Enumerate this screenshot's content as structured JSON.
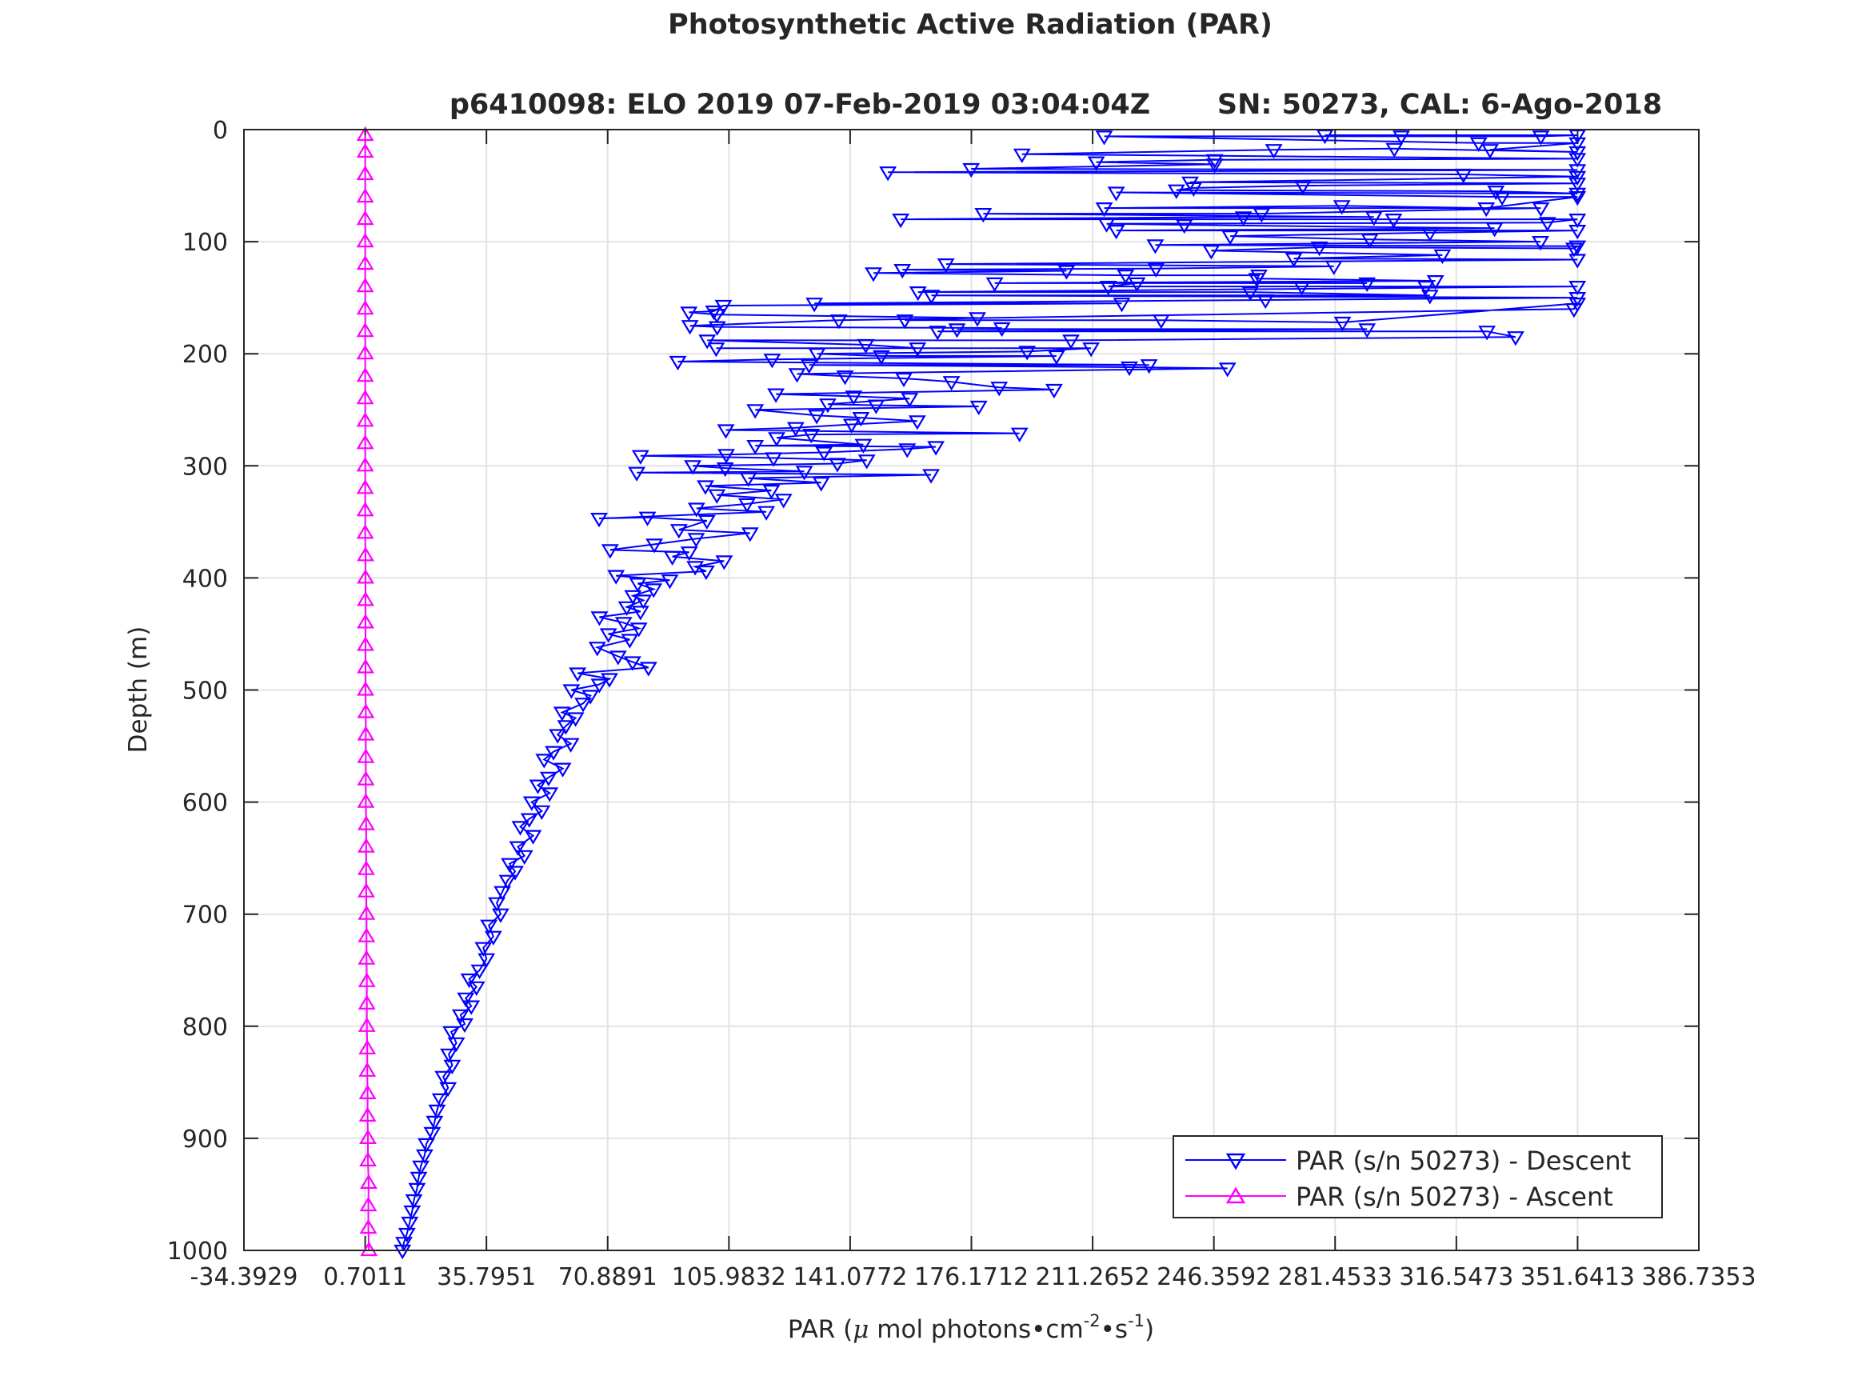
{
  "chart_data": {
    "type": "line",
    "title": "Photosynthetic Active Radiation (PAR)",
    "subtitle_left": "p6410098: ELO 2019 07-Feb-2019 03:04:04Z",
    "subtitle_right": "SN: 50273, CAL: 6-Ago-2018",
    "xlabel": {
      "prefix": "PAR (",
      "mu": "μ",
      "unit": " mol photons•cm",
      "exp1": "-2",
      "mid": "•s",
      "exp2": "-1",
      "suffix": ")"
    },
    "ylabel": "Depth (m)",
    "xlim": [
      -34.3929,
      386.7353
    ],
    "ylim": [
      0,
      1000
    ],
    "y_reversed": true,
    "grid": true,
    "x_ticks": [
      -34.3929,
      0.7011,
      35.7951,
      70.8891,
      105.9832,
      141.0772,
      176.1712,
      211.2652,
      246.3592,
      281.4533,
      316.5473,
      351.6413,
      386.7353
    ],
    "x_tick_labels": [
      "-34.3929",
      "0.7011",
      "35.7951",
      "70.8891",
      "105.9832",
      "141.0772",
      "176.1712",
      "211.2652",
      "246.3592",
      "281.4533",
      "316.5473",
      "351.6413",
      "386.7353"
    ],
    "y_ticks": [
      0,
      100,
      200,
      300,
      400,
      500,
      600,
      700,
      800,
      900,
      1000
    ],
    "y_tick_labels": [
      "0",
      "100",
      "200",
      "300",
      "400",
      "500",
      "600",
      "700",
      "800",
      "900",
      "1000"
    ],
    "legend_position": "bottom-right",
    "series": [
      {
        "name": "PAR (s/n 50273) - Descent",
        "color": "#0000ff",
        "marker": "triangle-down",
        "points": [
          [
            278.5,
            5
          ],
          [
            351.6,
            5
          ],
          [
            341,
            6
          ],
          [
            300.6,
            6
          ],
          [
            214.6,
            6
          ],
          [
            323,
            12
          ],
          [
            351.6,
            12
          ],
          [
            326.3,
            18
          ],
          [
            351.6,
            20
          ],
          [
            298.6,
            17
          ],
          [
            263.7,
            18
          ],
          [
            190.8,
            22
          ],
          [
            351.6,
            26
          ],
          [
            246.6,
            27
          ],
          [
            212.3,
            29
          ],
          [
            246.6,
            31
          ],
          [
            176.1,
            35
          ],
          [
            351.6,
            36
          ],
          [
            152,
            38
          ],
          [
            318.6,
            40
          ],
          [
            351.6,
            42
          ],
          [
            239.5,
            47
          ],
          [
            351.6,
            48
          ],
          [
            272.1,
            50
          ],
          [
            240.5,
            52
          ],
          [
            235.5,
            54
          ],
          [
            328,
            55
          ],
          [
            351.6,
            57
          ],
          [
            218.1,
            56
          ],
          [
            329.8,
            60
          ],
          [
            351.6,
            60
          ],
          [
            325.2,
            70
          ],
          [
            283.4,
            68
          ],
          [
            214.6,
            70
          ],
          [
            341,
            70
          ],
          [
            260.2,
            75
          ],
          [
            179.6,
            75
          ],
          [
            292.7,
            78
          ],
          [
            254.9,
            78
          ],
          [
            155.7,
            80
          ],
          [
            298.4,
            80
          ],
          [
            351.6,
            80
          ],
          [
            342.9,
            83
          ],
          [
            215.3,
            84
          ],
          [
            237.8,
            85
          ],
          [
            327.6,
            88
          ],
          [
            218.1,
            90
          ],
          [
            351.6,
            90
          ],
          [
            308.9,
            92
          ],
          [
            251.1,
            95
          ],
          [
            291.5,
            98
          ],
          [
            340.9,
            100
          ],
          [
            229.4,
            103
          ],
          [
            351.6,
            104
          ],
          [
            350.6,
            106
          ],
          [
            276.9,
            105
          ],
          [
            245.6,
            108
          ],
          [
            312.5,
            112
          ],
          [
            269.5,
            115
          ],
          [
            351.6,
            116
          ],
          [
            168.8,
            120
          ],
          [
            281.1,
            122
          ],
          [
            229.6,
            124
          ],
          [
            156.2,
            125
          ],
          [
            203.7,
            126
          ],
          [
            147.8,
            128
          ],
          [
            220.8,
            130
          ],
          [
            259.4,
            130
          ],
          [
            258.8,
            133
          ],
          [
            310.5,
            135
          ],
          [
            182.9,
            137
          ],
          [
            290.7,
            137
          ],
          [
            224.1,
            137
          ],
          [
            215.8,
            140
          ],
          [
            271.8,
            140
          ],
          [
            307.7,
            140
          ],
          [
            351.6,
            140
          ],
          [
            160.7,
            145
          ],
          [
            256.9,
            145
          ],
          [
            308.9,
            148
          ],
          [
            164.6,
            148
          ],
          [
            351.6,
            150
          ],
          [
            261.3,
            152
          ],
          [
            130.7,
            155
          ],
          [
            219.7,
            155
          ],
          [
            104.4,
            157
          ],
          [
            101.6,
            162
          ],
          [
            94.4,
            163
          ],
          [
            102.5,
            165
          ],
          [
            177.9,
            168
          ],
          [
            156.9,
            170
          ],
          [
            231.1,
            170
          ],
          [
            283.6,
            172
          ],
          [
            351.6,
            155
          ],
          [
            350.6,
            160
          ],
          [
            137.8,
            170
          ],
          [
            94.7,
            175
          ],
          [
            102.6,
            176
          ],
          [
            185,
            177
          ],
          [
            172,
            178
          ],
          [
            290.7,
            178
          ],
          [
            166.4,
            180
          ],
          [
            325.4,
            180
          ],
          [
            333.7,
            185
          ],
          [
            205,
            188
          ],
          [
            99.7,
            188
          ],
          [
            145.6,
            192
          ],
          [
            160.6,
            195
          ],
          [
            102.3,
            195
          ],
          [
            210.8,
            195
          ],
          [
            192.3,
            198
          ],
          [
            131.5,
            200
          ],
          [
            150.1,
            202
          ],
          [
            200.8,
            202
          ],
          [
            118.5,
            205
          ],
          [
            91.2,
            207
          ],
          [
            227.6,
            210
          ],
          [
            129.2,
            210
          ],
          [
            221.9,
            212
          ],
          [
            250.3,
            213
          ],
          [
            125.7,
            218
          ],
          [
            139.6,
            220
          ],
          [
            156.6,
            222
          ],
          [
            170.4,
            225
          ],
          [
            184.2,
            230
          ],
          [
            200.1,
            232
          ],
          [
            119.6,
            236
          ],
          [
            142.1,
            238
          ],
          [
            158.3,
            240
          ],
          [
            134.6,
            245
          ],
          [
            148.6,
            246
          ],
          [
            178.3,
            247
          ],
          [
            113.6,
            250
          ],
          [
            131.4,
            255
          ],
          [
            144.2,
            257
          ],
          [
            160.5,
            260
          ],
          [
            141.5,
            263
          ],
          [
            125.3,
            266
          ],
          [
            105.1,
            268
          ],
          [
            190.1,
            271
          ],
          [
            129.8,
            272
          ],
          [
            119.8,
            275
          ],
          [
            144.9,
            281
          ],
          [
            113.6,
            282
          ],
          [
            165.9,
            283
          ],
          [
            157.6,
            285
          ],
          [
            133.5,
            288
          ],
          [
            105.2,
            290
          ],
          [
            80.4,
            291
          ],
          [
            118.9,
            293
          ],
          [
            145.9,
            295
          ],
          [
            137.4,
            298
          ],
          [
            95.5,
            300
          ],
          [
            104.9,
            302
          ],
          [
            127.8,
            305
          ],
          [
            79.3,
            306
          ],
          [
            164.5,
            308
          ],
          [
            111.6,
            311
          ],
          [
            132.7,
            315
          ],
          [
            99.2,
            318
          ],
          [
            118.3,
            322
          ],
          [
            102.5,
            326
          ],
          [
            121.8,
            330
          ],
          [
            111.2,
            334
          ],
          [
            96.6,
            338
          ],
          [
            116.8,
            341
          ],
          [
            68.4,
            347
          ],
          [
            82.4,
            346
          ],
          [
            99.6,
            349
          ],
          [
            91.5,
            357
          ],
          [
            112.1,
            360
          ],
          [
            96.5,
            365
          ],
          [
            84.4,
            370
          ],
          [
            71.6,
            375
          ],
          [
            94.5,
            377
          ],
          [
            89.6,
            381
          ],
          [
            104.6,
            385
          ],
          [
            96.2,
            390
          ],
          [
            99.4,
            394
          ],
          [
            73.3,
            398
          ],
          [
            88.9,
            402
          ],
          [
            79.6,
            405
          ],
          [
            84.2,
            410
          ],
          [
            78.2,
            416
          ],
          [
            81.2,
            420
          ],
          [
            76.4,
            426
          ],
          [
            80.4,
            430
          ],
          [
            68.5,
            435
          ],
          [
            75.5,
            440
          ],
          [
            79.9,
            445
          ],
          [
            71.1,
            450
          ],
          [
            77.3,
            455
          ],
          [
            67.9,
            462
          ],
          [
            73.9,
            470
          ],
          [
            78.1,
            475
          ],
          [
            82.7,
            480
          ],
          [
            62.2,
            485
          ],
          [
            71.4,
            490
          ],
          [
            68.5,
            495
          ],
          [
            60.4,
            500
          ],
          [
            65.9,
            505
          ],
          [
            63.8,
            512
          ],
          [
            57.7,
            520
          ],
          [
            61.6,
            525
          ],
          [
            58.8,
            532
          ],
          [
            56.4,
            540
          ],
          [
            60.2,
            548
          ],
          [
            55.2,
            555
          ],
          [
            52.5,
            562
          ],
          [
            57.9,
            570
          ],
          [
            53.8,
            578
          ],
          [
            50.7,
            585
          ],
          [
            54.1,
            592
          ],
          [
            48.9,
            600
          ],
          [
            51.8,
            608
          ],
          [
            48.2,
            615
          ],
          [
            45.6,
            622
          ],
          [
            49.3,
            630
          ],
          [
            44.9,
            640
          ],
          [
            46.8,
            648
          ],
          [
            42.5,
            655
          ],
          [
            44.1,
            662
          ],
          [
            41.9,
            670
          ],
          [
            40.4,
            680
          ],
          [
            38.8,
            690
          ],
          [
            39.9,
            700
          ],
          [
            36.5,
            710
          ],
          [
            37.8,
            720
          ],
          [
            34.9,
            730
          ],
          [
            35.8,
            740
          ],
          [
            33.8,
            750
          ],
          [
            30.8,
            758
          ],
          [
            32.9,
            765
          ],
          [
            29.8,
            775
          ],
          [
            31.4,
            782
          ],
          [
            28.3,
            790
          ],
          [
            29.5,
            798
          ],
          [
            25.6,
            805
          ],
          [
            27.1,
            815
          ],
          [
            24.9,
            825
          ],
          [
            25.9,
            835
          ],
          [
            23.3,
            845
          ],
          [
            24.7,
            855
          ],
          [
            22.5,
            865
          ],
          [
            21.5,
            875
          ],
          [
            20.8,
            885
          ],
          [
            20.1,
            895
          ],
          [
            18.4,
            905
          ],
          [
            17.9,
            915
          ],
          [
            16.8,
            925
          ],
          [
            16.2,
            935
          ],
          [
            15.7,
            945
          ],
          [
            14.8,
            955
          ],
          [
            14.3,
            965
          ],
          [
            13.6,
            975
          ],
          [
            12.8,
            985
          ],
          [
            11.9,
            993
          ],
          [
            11.5,
            1000
          ]
        ]
      },
      {
        "name": "PAR (s/n 50273) - Ascent",
        "color": "#ff00ff",
        "marker": "triangle-up",
        "points": [
          [
            1.8,
            1000
          ],
          [
            1.6,
            980
          ],
          [
            1.6,
            960
          ],
          [
            1.7,
            940
          ],
          [
            1.5,
            920
          ],
          [
            1.5,
            900
          ],
          [
            1.4,
            880
          ],
          [
            1.4,
            860
          ],
          [
            1.3,
            840
          ],
          [
            1.3,
            820
          ],
          [
            1.2,
            800
          ],
          [
            1.2,
            780
          ],
          [
            1.2,
            760
          ],
          [
            1.1,
            740
          ],
          [
            1.1,
            720
          ],
          [
            1.1,
            700
          ],
          [
            1.0,
            680
          ],
          [
            1.0,
            660
          ],
          [
            1.0,
            640
          ],
          [
            1.0,
            620
          ],
          [
            0.9,
            600
          ],
          [
            0.9,
            580
          ],
          [
            0.9,
            560
          ],
          [
            0.9,
            540
          ],
          [
            0.9,
            520
          ],
          [
            0.8,
            500
          ],
          [
            0.8,
            480
          ],
          [
            0.8,
            460
          ],
          [
            0.8,
            440
          ],
          [
            0.8,
            420
          ],
          [
            0.8,
            400
          ],
          [
            0.8,
            380
          ],
          [
            0.7,
            360
          ],
          [
            0.7,
            340
          ],
          [
            0.7,
            320
          ],
          [
            0.7,
            300
          ],
          [
            0.7,
            280
          ],
          [
            0.7,
            260
          ],
          [
            0.7,
            240
          ],
          [
            0.7,
            220
          ],
          [
            0.7,
            200
          ],
          [
            0.7,
            180
          ],
          [
            0.7,
            160
          ],
          [
            0.7,
            140
          ],
          [
            0.7,
            120
          ],
          [
            0.7,
            100
          ],
          [
            0.7,
            80
          ],
          [
            0.7,
            60
          ],
          [
            0.7,
            40
          ],
          [
            0.7,
            20
          ],
          [
            0.7,
            5
          ]
        ]
      }
    ]
  }
}
